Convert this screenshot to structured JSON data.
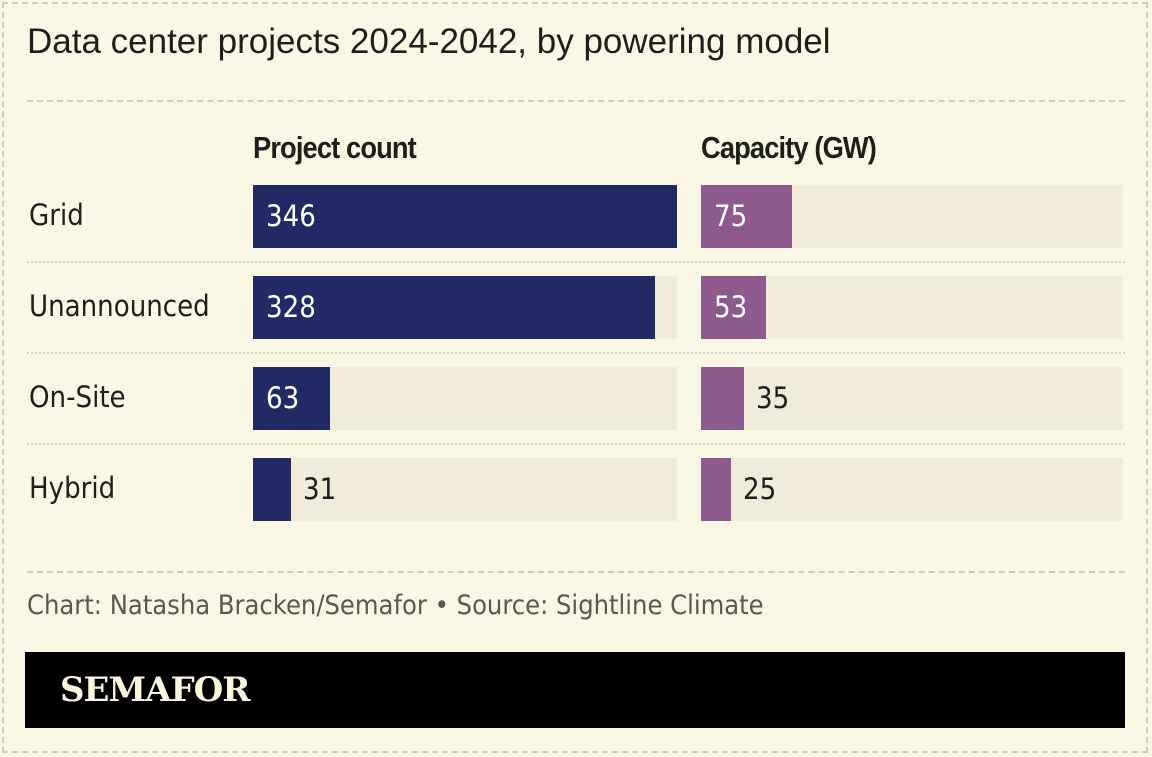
{
  "chart_data": {
    "type": "bar",
    "orientation": "horizontal",
    "title": "Data center projects 2024-2042, by powering model",
    "categories": [
      "Grid",
      "Unannounced",
      "On-Site",
      "Hybrid"
    ],
    "series": [
      {
        "name": "Project count",
        "values": [
          346,
          328,
          63,
          31
        ],
        "color": "#222a66"
      },
      {
        "name": "Capacity (GW)",
        "values": [
          75,
          53,
          35,
          25
        ],
        "color": "#8e5a8e"
      }
    ],
    "xlim": [
      0,
      346
    ],
    "grid": false,
    "track_color": "#f1ebda"
  },
  "credit": "Chart: Natasha Bracken/Semafor • Source: Sightline Climate",
  "logo": "SEMAFOR",
  "colors": {
    "background": "#faf8e4",
    "footer": "#000000"
  }
}
